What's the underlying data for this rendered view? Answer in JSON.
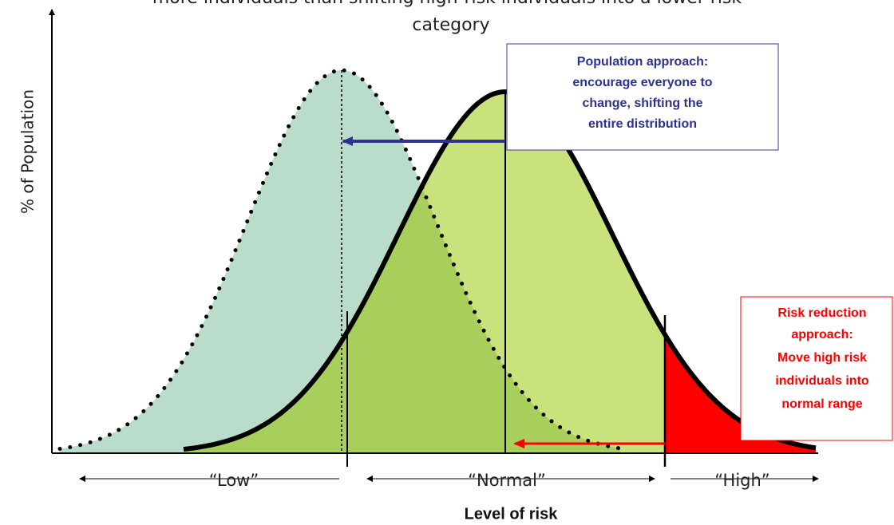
{
  "title": [
    "more individuals than shifting high-risk individuals into a lower risk",
    "category"
  ],
  "y_axis_label": "% of Population",
  "x_axis_label": "Level of risk",
  "regions": [
    "“Low”",
    "“Normal”",
    "“High”"
  ],
  "population_approach": [
    "Population approach:",
    "encourage everyone to",
    "change, shifting the",
    "entire distribution"
  ],
  "risk_reduction_approach": [
    "Risk reduction",
    "approach:",
    "Move high risk",
    "individuals into",
    "normal range"
  ]
}
